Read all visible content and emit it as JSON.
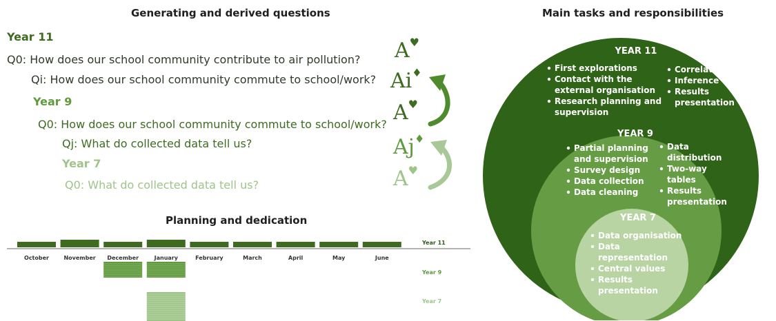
{
  "left_title": "Generating and derived questions",
  "right_title": "Main tasks and responsibilities",
  "planning_title": "Planning and dedication",
  "questions": {
    "year11_label": "Year 11",
    "q0_y11": "Q0: How does our school community contribute to air pollution?",
    "qi_y11": "Qi: How does our school community commute to school/work?",
    "year9_label": "Year 9",
    "q0_y9": "Q0: How does our school community commute to school/work?",
    "qj_y9": "Qj: What do collected data tell us?",
    "year7_label": "Year 7",
    "q0_y7": "Q0: What do collected data tell us?"
  },
  "glyphs": {
    "g1_letter": "A",
    "g1_suit": "♥",
    "g2_letter": "Ai",
    "g2_suit": "♦",
    "g3_letter": "A",
    "g3_suit": "♥",
    "g4_letter": "Aj",
    "g4_suit": "♦",
    "g5_letter": "A",
    "g5_suit": "♥"
  },
  "colors": {
    "year11": "#3e6b20",
    "year9": "#5f9a3c",
    "year7": "#9fc489"
  },
  "timeline": {
    "months": [
      "October",
      "November",
      "December",
      "January",
      "February",
      "March",
      "April",
      "May",
      "June"
    ],
    "rows": [
      {
        "label": "Year 11",
        "active": [
          true,
          true,
          true,
          true,
          true,
          true,
          true,
          true,
          true
        ]
      },
      {
        "label": "Year 9",
        "active": [
          false,
          false,
          true,
          true,
          false,
          false,
          false,
          false,
          false
        ]
      },
      {
        "label": "Year 7",
        "active": [
          false,
          false,
          false,
          true,
          false,
          false,
          false,
          false,
          false
        ]
      }
    ]
  },
  "circles": {
    "year11": {
      "title": "YEAR 11",
      "left_items": [
        "First explorations",
        "Contact with the",
        "external organisation",
        "Research planning and",
        "supervision"
      ],
      "right_items": [
        "Correlation",
        "Inference",
        "Results",
        "presentation"
      ]
    },
    "year9": {
      "title": "YEAR 9",
      "left_items": [
        "Partial planning",
        "and supervision",
        "Survey design",
        "Data collection",
        "Data cleaning"
      ],
      "right_items": [
        "Data",
        "distribution",
        "Two-way",
        "tables",
        "Results",
        "presentation"
      ]
    },
    "year7": {
      "title": "YEAR 7",
      "items": [
        "Data organisation",
        "Data",
        "representation",
        "Central values",
        "Results",
        "presentation"
      ]
    }
  }
}
